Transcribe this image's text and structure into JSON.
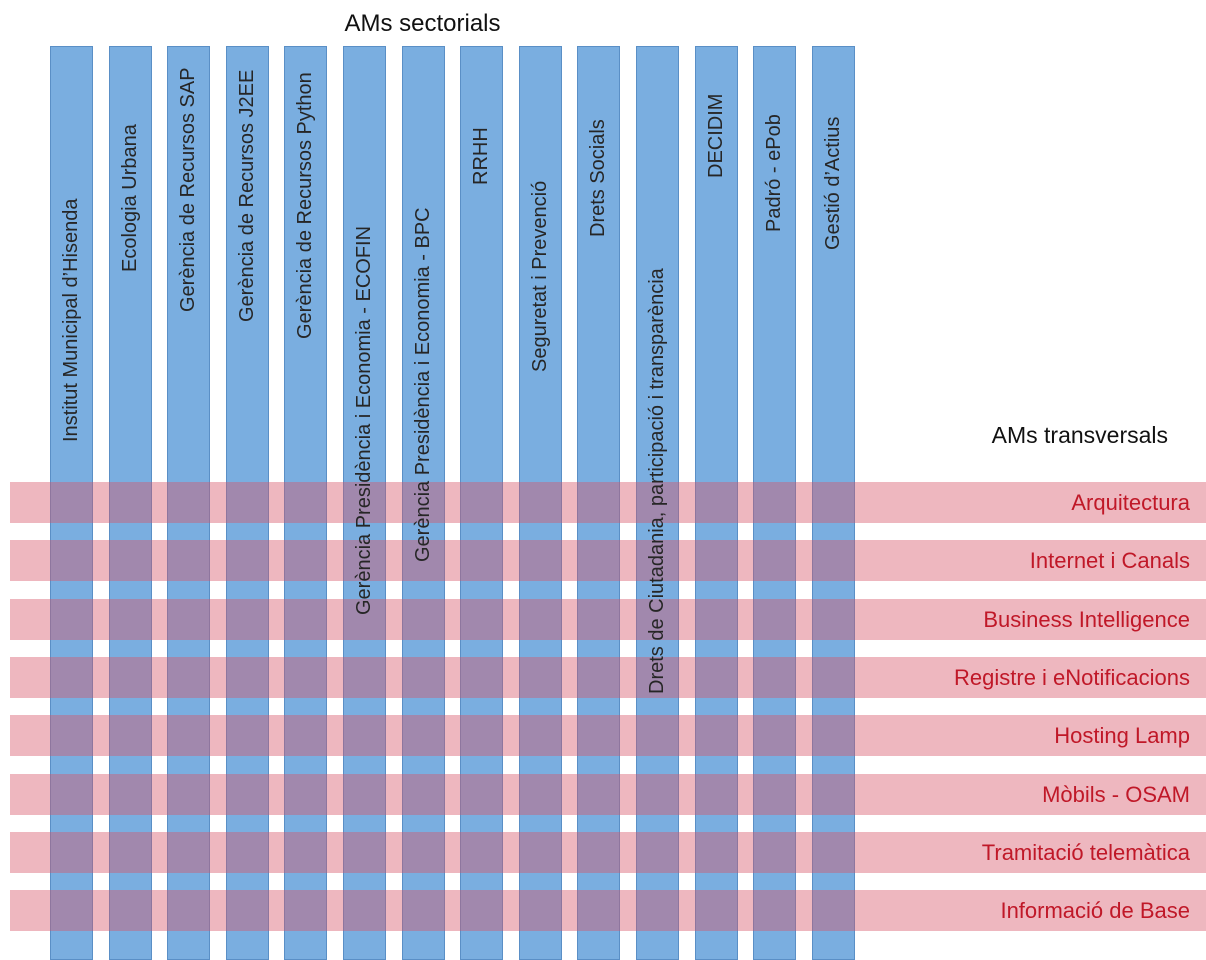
{
  "sectorial_header": "AMs sectorials",
  "transversal_header": "AMs transversals",
  "sectorial_columns": [
    "Institut Municipal d’Hisenda",
    "Ecologia Urbana",
    "Gerència de Recursos SAP",
    "Gerència de Recursos J2EE",
    "Gerència de Recursos Python",
    "Gerència Presidència i Economia - ECOFIN",
    "Gerència Presidència i Economia - BPC",
    "RRHH",
    "Seguretat i Prevenció",
    "Drets Socials",
    "Drets de Ciutadania, participació i transparència",
    "DECIDIM",
    "Padró - ePob",
    "Gestió d’Actius"
  ],
  "transversal_rows": [
    "Arquitectura",
    "Internet i Canals",
    "Business Intelligence",
    "Registre i eNotificacions",
    "Hosting Lamp",
    "Mòbils - OSAM",
    "Tramitació telemàtica",
    "Informació de Base"
  ],
  "colors": {
    "column_fill": "#7aaee0",
    "column_border": "#5a8fc6",
    "row_fill": "#d75367",
    "row_text": "#c01828"
  }
}
